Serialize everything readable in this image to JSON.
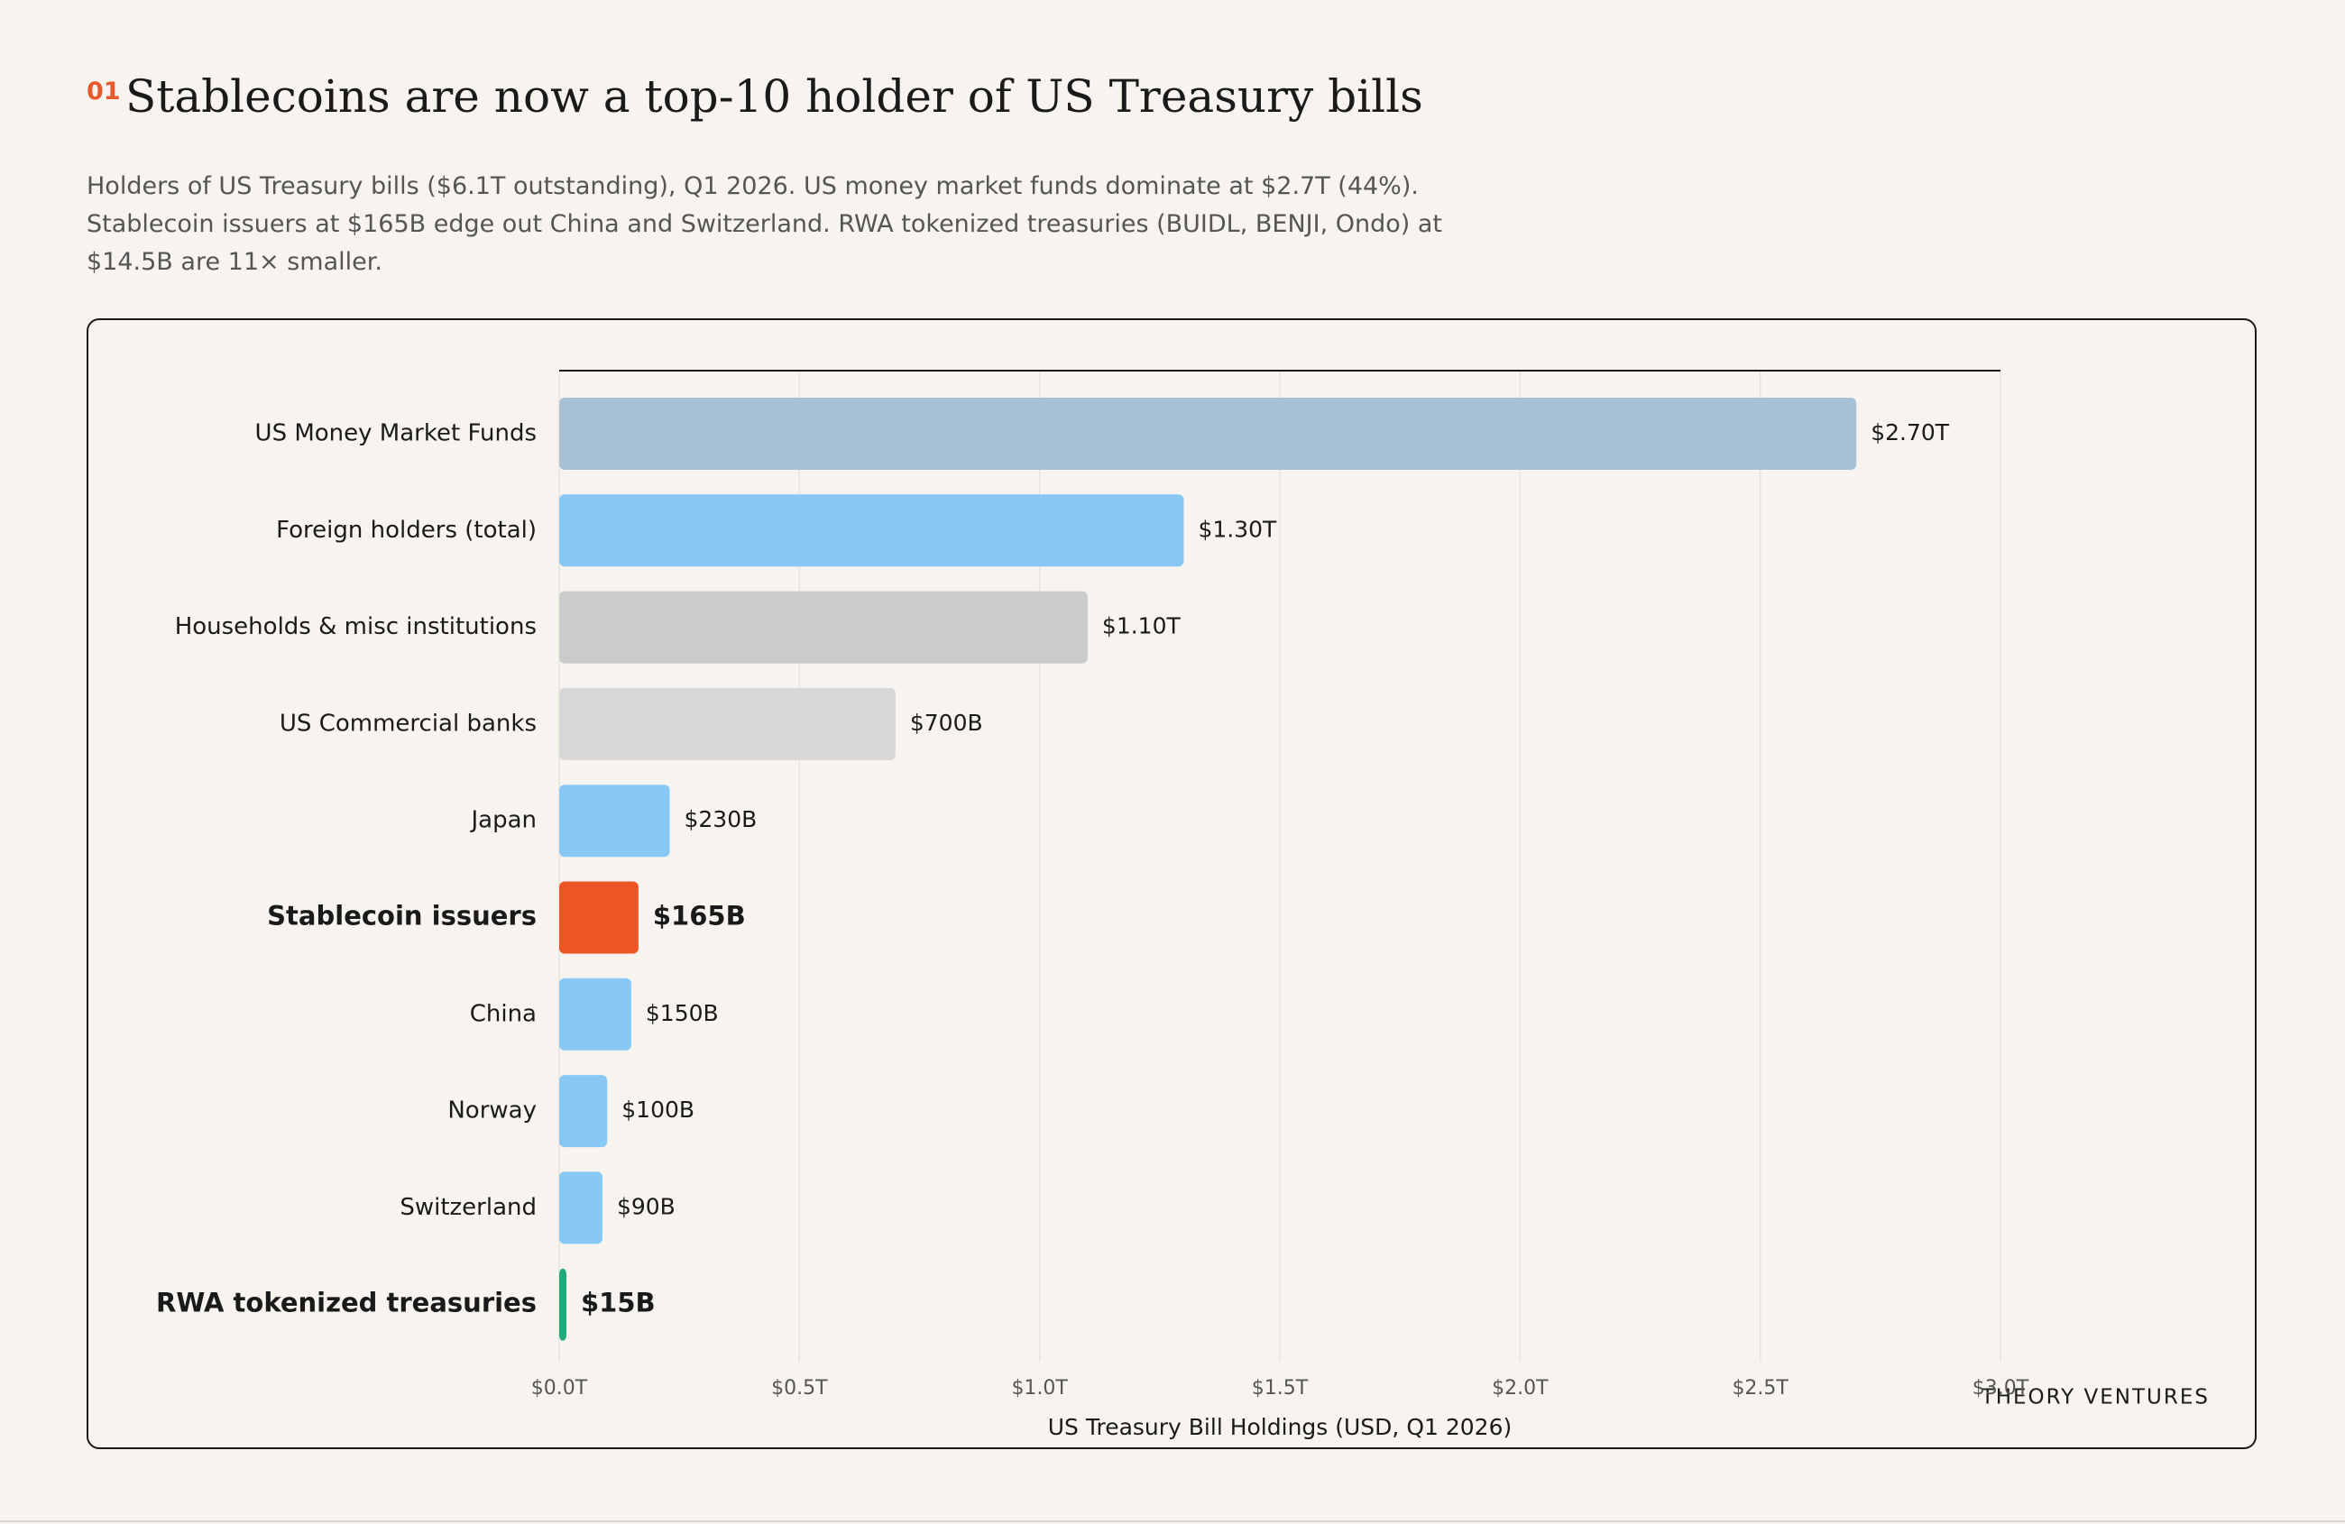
{
  "chart_data": {
    "type": "barh",
    "number": "01",
    "title": "Stablecoins are now a top-10 holder of US Treasury bills",
    "subtitle": "Holders of US Treasury bills ($6.1T outstanding), Q1 2026. US money market funds dominate at $2.7T (44%). Stablecoin issuers at $165B edge out China and Switzerland. RWA tokenized treasuries (BUIDL, BENJI, Ondo) at $14.5B are 11× smaller.",
    "xlabel": "US Treasury Bill Holdings (USD, Q1 2026)",
    "source": "THEORY VENTURES",
    "categories": [
      "US Money Market Funds",
      "Foreign holders (total)",
      "Households & misc institutions",
      "US Commercial banks",
      "Japan",
      "Stablecoin issuers",
      "China",
      "Norway",
      "Switzerland",
      "RWA tokenized treasuries"
    ],
    "values": [
      2.7,
      1.3,
      1.1,
      0.7,
      0.23,
      0.165,
      0.15,
      0.1,
      0.09,
      0.015
    ],
    "value_labels": [
      "$2.70T",
      "$1.30T",
      "$1.10T",
      "$700B",
      "$230B",
      "$165B",
      "$150B",
      "$100B",
      "$90B",
      "$15B"
    ],
    "colors": [
      "#a8c1d6",
      "#87c8f5",
      "#cbcbcb",
      "#d7d7d7",
      "#87c8f5",
      "#ee5524",
      "#87c8f5",
      "#87c8f5",
      "#87c8f5",
      "#1faa7c"
    ],
    "bold": [
      false,
      false,
      false,
      false,
      false,
      true,
      false,
      false,
      false,
      true
    ],
    "xlim": [
      0,
      3
    ],
    "xticks": [
      {
        "value": 0,
        "label": "$0.0T"
      },
      {
        "value": 0.5,
        "label": "$0.5T"
      },
      {
        "value": 1,
        "label": "$1.0T"
      },
      {
        "value": 1.5,
        "label": "$1.5T"
      },
      {
        "value": 2,
        "label": "$2.0T"
      },
      {
        "value": 2.5,
        "label": "$2.5T"
      },
      {
        "value": 3,
        "label": "$3.0T"
      }
    ],
    "grid": true
  }
}
